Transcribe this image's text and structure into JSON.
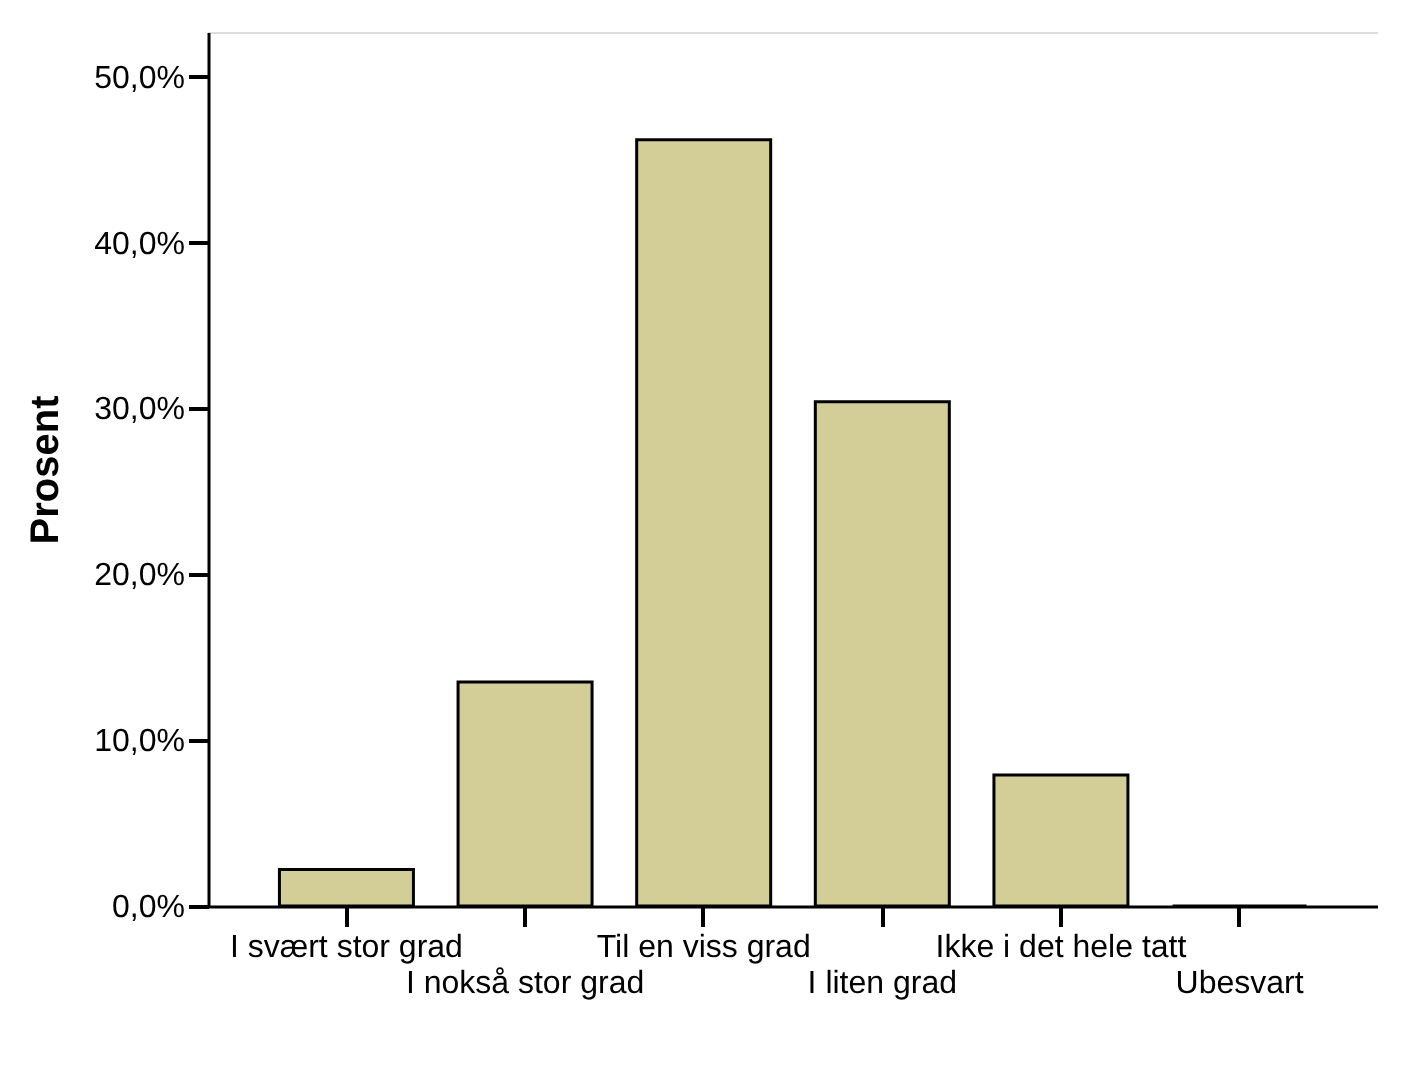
{
  "chart_data": {
    "type": "bar",
    "ylabel": "Prosent",
    "categories": [
      "I svært stor grad",
      "I nokså stor grad",
      "Til en viss grad",
      "I liten grad",
      "Ikke i det hele tatt",
      "Ubesvart"
    ],
    "values": [
      2.2,
      13.5,
      46.2,
      30.4,
      7.9,
      0.0
    ],
    "color": "#d3ce97",
    "ylim": [
      0,
      52.7
    ],
    "yticks": [
      {
        "value": 0,
        "label": "0,0%"
      },
      {
        "value": 10,
        "label": "10,0%"
      },
      {
        "value": 20,
        "label": "20,0%"
      },
      {
        "value": 30,
        "label": "30,0%"
      },
      {
        "value": 40,
        "label": "40,0%"
      },
      {
        "value": 50,
        "label": "50,0%"
      }
    ],
    "grid": false
  }
}
